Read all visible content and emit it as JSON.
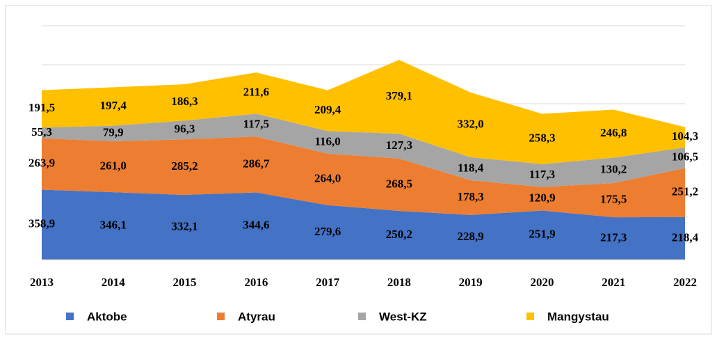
{
  "chart_data": {
    "type": "stacked-area",
    "categories": [
      "2013",
      "2014",
      "2015",
      "2016",
      "2017",
      "2018",
      "2019",
      "2020",
      "2021",
      "2022"
    ],
    "series": [
      {
        "name": "Aktobe",
        "color": "#4472c4",
        "values": [
          358.9,
          346.1,
          332.1,
          344.6,
          279.6,
          250.2,
          228.9,
          251.9,
          217.3,
          218.4
        ],
        "value_labels": [
          "358,9",
          "346,1",
          "332,1",
          "344,6",
          "279,6",
          "250,2",
          "228,9",
          "251,9",
          "217,3",
          "218,4"
        ]
      },
      {
        "name": "Atyrau",
        "color": "#ed7d31",
        "values": [
          263.9,
          261.0,
          285.2,
          286.7,
          264.0,
          268.5,
          178.3,
          120.9,
          175.5,
          251.2
        ],
        "value_labels": [
          "263,9",
          "261,0",
          "285,2",
          "286,7",
          "264,0",
          "268,5",
          "178,3",
          "120,9",
          "175,5",
          "251,2"
        ]
      },
      {
        "name": "West-KZ",
        "color": "#a5a5a5",
        "values": [
          55.3,
          79.9,
          96.3,
          117.5,
          116.0,
          127.3,
          118.4,
          117.3,
          130.2,
          106.5
        ],
        "value_labels": [
          "55,3",
          "79,9",
          "96,3",
          "117,5",
          "116,0",
          "127,3",
          "118,4",
          "117,3",
          "130,2",
          "106,5"
        ]
      },
      {
        "name": "Mangystau",
        "color": "#ffc000",
        "values": [
          191.5,
          197.4,
          186.3,
          211.6,
          209.4,
          379.1,
          332.0,
          258.3,
          246.8,
          104.3
        ],
        "value_labels": [
          "191,5",
          "197,4",
          "186,3",
          "211,6",
          "209,4",
          "379,1",
          "332,0",
          "258,3",
          "246,8",
          "104,3"
        ]
      }
    ],
    "ylim": [
      0,
      1200
    ],
    "yticks": [
      0,
      200,
      400,
      600,
      800,
      1000,
      1200
    ],
    "grid": true,
    "legend": "bottom"
  }
}
